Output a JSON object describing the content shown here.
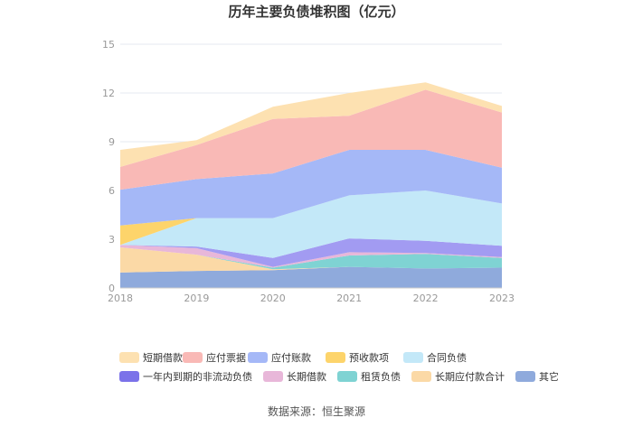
{
  "chart_data": {
    "type": "area",
    "title": "历年主要负债堆积图（亿元）",
    "x": [
      "2018",
      "2019",
      "2020",
      "2021",
      "2022",
      "2023"
    ],
    "yticks": [
      "0",
      "3",
      "6",
      "9",
      "12",
      "15"
    ],
    "ylim": [
      0,
      15
    ],
    "grid": true,
    "legend_position": "bottom",
    "series": [
      {
        "name": "其它",
        "color": "#8faadc",
        "values": [
          0.95,
          1.05,
          1.1,
          1.3,
          1.2,
          1.25
        ]
      },
      {
        "name": "长期应付款合计",
        "color": "#fbd9a6",
        "values": [
          1.55,
          1.0,
          0.05,
          0.0,
          0.0,
          0.0
        ]
      },
      {
        "name": "租赁负债",
        "color": "#7fd3d3",
        "values": [
          0.0,
          0.0,
          0.1,
          0.7,
          0.9,
          0.6
        ]
      },
      {
        "name": "长期借款",
        "color": "#e8b7d9",
        "values": [
          0.15,
          0.4,
          0.05,
          0.2,
          0.05,
          0.05
        ]
      },
      {
        "name": "一年内到期的非流动负债",
        "color": "#a29bf2",
        "values": [
          0.0,
          0.1,
          0.55,
          0.85,
          0.75,
          0.7
        ]
      },
      {
        "name": "合同负债",
        "color": "#c3e8f8",
        "values": [
          0.0,
          1.75,
          2.45,
          2.65,
          3.1,
          2.6
        ]
      },
      {
        "name": "预收款项",
        "color": "#fdd46b",
        "values": [
          1.2,
          0.0,
          0.0,
          0.0,
          0.0,
          0.0
        ]
      },
      {
        "name": "应付账款",
        "color": "#a5b8f7",
        "values": [
          2.2,
          2.4,
          2.75,
          2.8,
          2.5,
          2.2
        ]
      },
      {
        "name": "应付票据",
        "color": "#f9b9b6",
        "values": [
          1.4,
          2.1,
          3.35,
          2.1,
          3.7,
          3.4
        ]
      },
      {
        "name": "短期借款",
        "color": "#fde1b1",
        "values": [
          1.05,
          0.3,
          0.75,
          1.4,
          0.45,
          0.4
        ]
      }
    ]
  },
  "legend": {
    "row1": [
      {
        "name": "短期借款",
        "color": "#fde1b1"
      },
      {
        "name": "应付票据",
        "color": "#f9b9b6"
      },
      {
        "name": "应付账款",
        "color": "#a5b8f7"
      },
      {
        "name": "预收款项",
        "color": "#fdd46b"
      },
      {
        "name": "合同负债",
        "color": "#c3e8f8"
      }
    ],
    "row2": [
      {
        "name": "一年内到期的非流动负债",
        "color": "#7b72e9"
      },
      {
        "name": "长期借款",
        "color": "#e8b7d9"
      },
      {
        "name": "租赁负债",
        "color": "#7fd3d3"
      },
      {
        "name": "长期应付款合计",
        "color": "#fbd9a6"
      },
      {
        "name": "其它",
        "color": "#8faadc"
      }
    ]
  },
  "source": "数据来源：恒生聚源"
}
